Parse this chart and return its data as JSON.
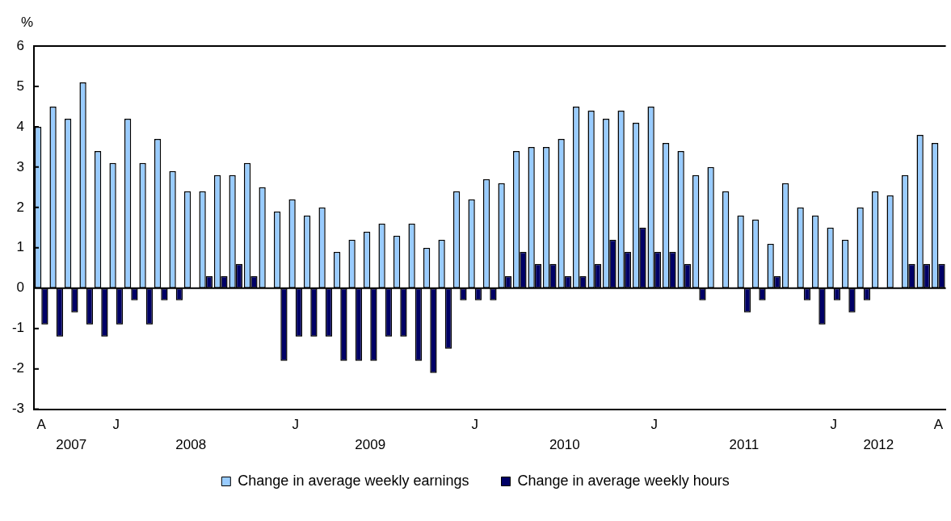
{
  "chart_data": {
    "type": "bar",
    "ylabel": "%",
    "categories": [
      "A",
      null,
      null,
      null,
      null,
      "J",
      null,
      null,
      null,
      null,
      null,
      null,
      null,
      null,
      null,
      null,
      null,
      "J",
      null,
      null,
      null,
      null,
      null,
      null,
      null,
      null,
      null,
      null,
      null,
      "J",
      null,
      null,
      null,
      null,
      null,
      null,
      null,
      null,
      null,
      null,
      null,
      "J",
      null,
      null,
      null,
      null,
      null,
      null,
      null,
      null,
      null,
      null,
      null,
      "J",
      null,
      null,
      null,
      null,
      null,
      null,
      "A"
    ],
    "series": [
      {
        "name": "Change in average weekly earnings",
        "color": "#99ccff",
        "values": [
          4.0,
          4.5,
          4.2,
          5.1,
          3.4,
          3.1,
          4.2,
          3.1,
          3.7,
          2.9,
          2.4,
          2.4,
          2.8,
          2.8,
          3.1,
          2.5,
          1.9,
          2.2,
          1.8,
          2.0,
          0.9,
          1.2,
          1.4,
          1.6,
          1.3,
          1.6,
          1.0,
          1.2,
          2.4,
          2.2,
          2.7,
          2.6,
          3.4,
          3.5,
          3.5,
          3.7,
          4.5,
          4.4,
          4.2,
          4.4,
          4.1,
          4.5,
          3.6,
          3.4,
          2.8,
          3.0,
          2.4,
          1.8,
          1.7,
          1.1,
          2.6,
          2.0,
          1.8,
          1.5,
          1.2,
          2.0,
          2.4,
          2.3,
          2.8,
          3.8,
          3.6
        ]
      },
      {
        "name": "Change in average weekly hours",
        "color": "#000066",
        "values": [
          -0.9,
          -1.2,
          -0.6,
          -0.9,
          -1.2,
          -0.9,
          -0.3,
          -0.9,
          -0.3,
          -0.3,
          0,
          0.3,
          0.3,
          0.6,
          0.3,
          0,
          -1.8,
          -1.2,
          -1.2,
          -1.2,
          -1.8,
          -1.8,
          -1.8,
          -1.2,
          -1.2,
          -1.8,
          -2.1,
          -1.5,
          -0.3,
          -0.3,
          -0.3,
          0.3,
          0.9,
          0.6,
          0.6,
          0.3,
          0.3,
          0.6,
          1.2,
          0.9,
          1.5,
          0.9,
          0.9,
          0.6,
          -0.3,
          0,
          0,
          -0.6,
          -0.3,
          0.3,
          0,
          -0.3,
          -0.9,
          -0.3,
          -0.6,
          -0.3,
          0,
          0,
          0.6,
          0.6,
          0.6
        ]
      }
    ],
    "ylim": [
      -3,
      6
    ],
    "yticks": [
      -3,
      -2,
      -1,
      0,
      1,
      2,
      3,
      4,
      5,
      6
    ],
    "annotations": [
      "2007",
      "2008",
      "2009",
      "2010",
      "2011",
      "2012"
    ],
    "legend": "bottom"
  }
}
